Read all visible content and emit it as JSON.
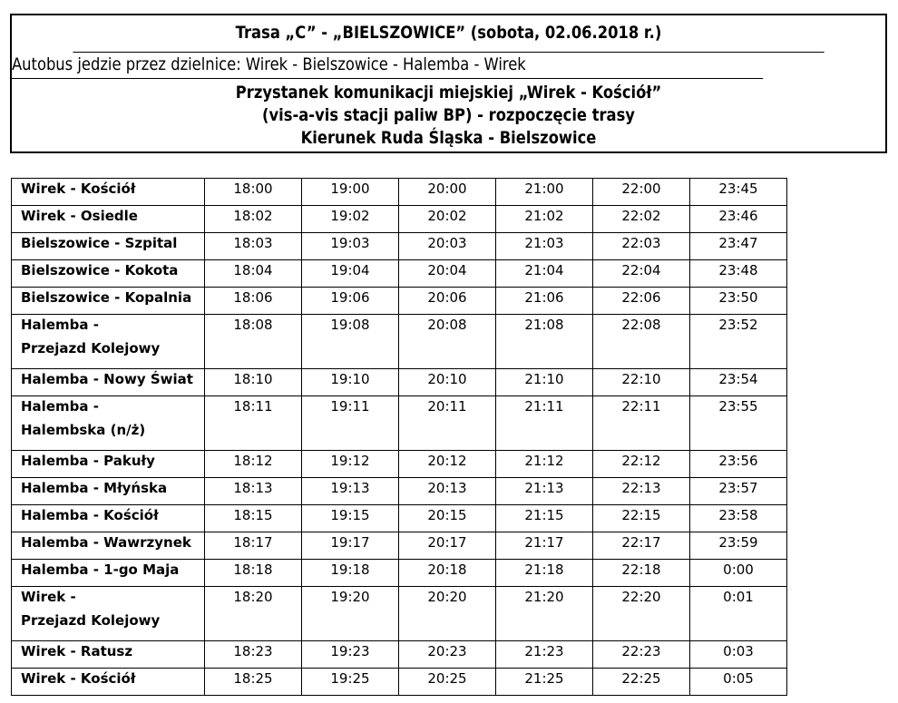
{
  "header": {
    "title": "Trasa „C” - „BIELSZOWICE” (sobota, 02.06.2018 r.)",
    "route_info": "Autobus jedzie przez dzielnice: Wirek - Bielszowice - Halemba - Wirek",
    "stop_lines": [
      "Przystanek komunikacji miejskiej „Wirek - Kościół”",
      "(vis-a-vis stacji paliw BP) - rozpoczęcie trasy",
      "Kierunek Ruda Śląska - Bielszowice"
    ]
  },
  "timetable": [
    {
      "stop": [
        "Wirek - Kościół"
      ],
      "times": [
        "18:00",
        "19:00",
        "20:00",
        "21:00",
        "22:00",
        "23:45"
      ]
    },
    {
      "stop": [
        "Wirek - Osiedle"
      ],
      "times": [
        "18:02",
        "19:02",
        "20:02",
        "21:02",
        "22:02",
        "23:46"
      ]
    },
    {
      "stop": [
        "Bielszowice - Szpital"
      ],
      "times": [
        "18:03",
        "19:03",
        "20:03",
        "21:03",
        "22:03",
        "23:47"
      ]
    },
    {
      "stop": [
        "Bielszowice - Kokota"
      ],
      "times": [
        "18:04",
        "19:04",
        "20:04",
        "21:04",
        "22:04",
        "23:48"
      ]
    },
    {
      "stop": [
        "Bielszowice - Kopalnia"
      ],
      "times": [
        "18:06",
        "19:06",
        "20:06",
        "21:06",
        "22:06",
        "23:50"
      ]
    },
    {
      "stop": [
        "Halemba -",
        "Przejazd Kolejowy"
      ],
      "times": [
        "18:08",
        "19:08",
        "20:08",
        "21:08",
        "22:08",
        "23:52"
      ]
    },
    {
      "stop": [
        "Halemba - Nowy Świat"
      ],
      "times": [
        "18:10",
        "19:10",
        "20:10",
        "21:10",
        "22:10",
        "23:54"
      ]
    },
    {
      "stop": [
        "Halemba -",
        "Halembska (n/ż)"
      ],
      "times": [
        "18:11",
        "19:11",
        "20:11",
        "21:11",
        "22:11",
        "23:55"
      ]
    },
    {
      "stop": [
        "Halemba - Pakuły"
      ],
      "times": [
        "18:12",
        "19:12",
        "20:12",
        "21:12",
        "22:12",
        "23:56"
      ]
    },
    {
      "stop": [
        "Halemba - Młyńska"
      ],
      "times": [
        "18:13",
        "19:13",
        "20:13",
        "21:13",
        "22:13",
        "23:57"
      ]
    },
    {
      "stop": [
        "Halemba - Kościół"
      ],
      "times": [
        "18:15",
        "19:15",
        "20:15",
        "21:15",
        "22:15",
        "23:58"
      ]
    },
    {
      "stop": [
        "Halemba - Wawrzynek"
      ],
      "times": [
        "18:17",
        "19:17",
        "20:17",
        "21:17",
        "22:17",
        "23:59"
      ]
    },
    {
      "stop": [
        "Halemba - 1-go Maja"
      ],
      "times": [
        "18:18",
        "19:18",
        "20:18",
        "21:18",
        "22:18",
        "0:00"
      ]
    },
    {
      "stop": [
        "Wirek -",
        "Przejazd Kolejowy"
      ],
      "times": [
        "18:20",
        "19:20",
        "20:20",
        "21:20",
        "22:20",
        "0:01"
      ]
    },
    {
      "stop": [
        "Wirek - Ratusz"
      ],
      "times": [
        "18:23",
        "19:23",
        "20:23",
        "21:23",
        "22:23",
        "0:03"
      ]
    },
    {
      "stop": [
        "Wirek - Kościół"
      ],
      "times": [
        "18:25",
        "19:25",
        "20:25",
        "21:25",
        "22:25",
        "0:05"
      ]
    }
  ]
}
